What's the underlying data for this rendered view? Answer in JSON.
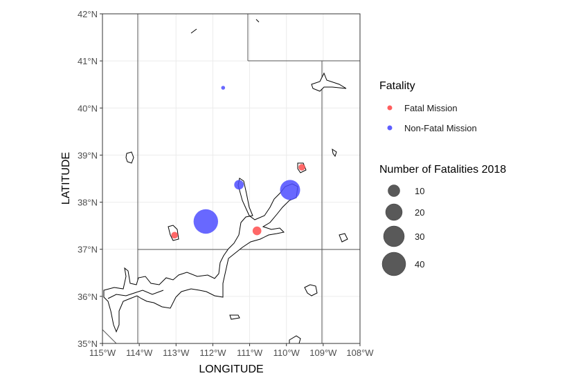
{
  "chart_data": {
    "type": "scatter",
    "subtype": "bubble map",
    "title": "",
    "xlabel": "LONGITUDE",
    "ylabel": "LATITUDE",
    "xlim": [
      -115,
      -108
    ],
    "ylim": [
      35,
      42
    ],
    "x_ticks": [
      "115°W",
      "114°W",
      "113°W",
      "112°W",
      "111°W",
      "110°W",
      "109°W",
      "108°W"
    ],
    "y_ticks": [
      "35°N",
      "36°N",
      "37°N",
      "38°N",
      "39°N",
      "40°N",
      "41°N",
      "42°N"
    ],
    "grid": true,
    "legend_position": "right",
    "color_legend": {
      "title": "Fatality",
      "entries": [
        {
          "label": "Fatal Mission",
          "color": "#ff4d4d"
        },
        {
          "label": "Non-Fatal Mission",
          "color": "#4d4dff"
        }
      ]
    },
    "size_legend": {
      "title": "Number of Fatalities 2018",
      "entries": [
        {
          "label": "10",
          "value": 10
        },
        {
          "label": "20",
          "value": 20
        },
        {
          "label": "30",
          "value": 30
        },
        {
          "label": "40",
          "value": 40
        }
      ]
    },
    "points": [
      {
        "lon": -112.19,
        "lat": 37.59,
        "fatality": "Non-Fatal Mission",
        "size": 40
      },
      {
        "lon": -109.9,
        "lat": 38.26,
        "fatality": "Non-Fatal Mission",
        "size": 27
      },
      {
        "lon": -111.29,
        "lat": 38.37,
        "fatality": "Non-Fatal Mission",
        "size": 6
      },
      {
        "lon": -111.72,
        "lat": 40.43,
        "fatality": "Non-Fatal Mission",
        "size": 1
      },
      {
        "lon": -110.8,
        "lat": 37.39,
        "fatality": "Fatal Mission",
        "size": 5
      },
      {
        "lon": -109.58,
        "lat": 38.74,
        "fatality": "Fatal Mission",
        "size": 3
      },
      {
        "lon": -113.04,
        "lat": 37.3,
        "fatality": "Fatal Mission",
        "size": 3
      }
    ]
  }
}
